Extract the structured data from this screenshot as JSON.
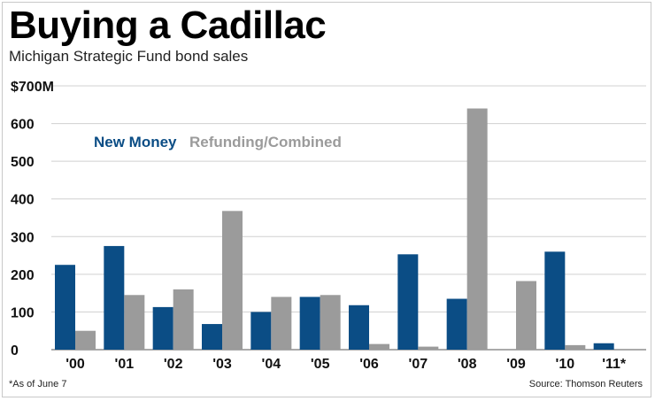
{
  "title": "Buying a Cadillac",
  "subtitle": "Michigan Strategic Fund bond sales",
  "footnote": "*As of June 7",
  "source": "Source: Thomson Reuters",
  "colors": {
    "new_money": "#0b4d85",
    "refunding": "#9b9b9b",
    "grid": "#d0d0d0"
  },
  "chart_data": {
    "type": "bar",
    "title": "Buying a Cadillac",
    "subtitle": "Michigan Strategic Fund bond sales",
    "xlabel": "",
    "ylabel": "",
    "ylim": [
      0,
      700
    ],
    "y_ticks": [
      0,
      100,
      200,
      300,
      400,
      500,
      600,
      700
    ],
    "y_tick_labels": [
      "0",
      "100",
      "200",
      "300",
      "400",
      "500",
      "600",
      "$700M"
    ],
    "categories": [
      "'00",
      "'01",
      "'02",
      "'03",
      "'04",
      "'05",
      "'06",
      "'07",
      "'08",
      "'09",
      "'10",
      "'11*"
    ],
    "series": [
      {
        "name": "New Money",
        "values": [
          225,
          275,
          113,
          68,
          100,
          140,
          118,
          253,
          135,
          0,
          260,
          17
        ]
      },
      {
        "name": "Refunding/Combined",
        "values": [
          50,
          145,
          160,
          368,
          140,
          145,
          15,
          8,
          640,
          182,
          12,
          0
        ]
      }
    ],
    "legend": [
      "New Money",
      "Refunding/Combined"
    ],
    "legend_position": "top-left",
    "grid": true
  }
}
